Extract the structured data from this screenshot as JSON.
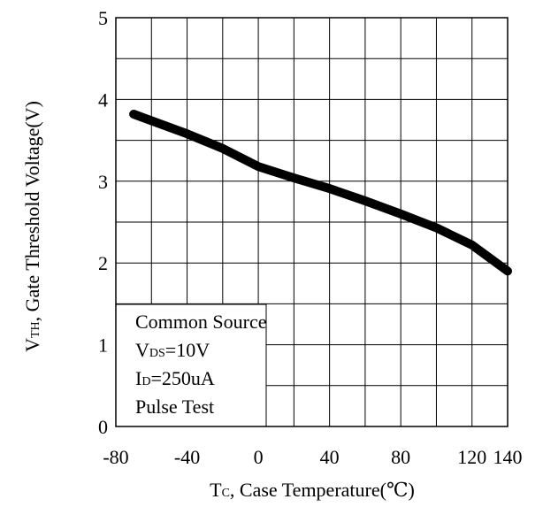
{
  "chart_data": {
    "type": "line",
    "title": "",
    "xlabel": "Tc, Case Temperature(℃)",
    "xlabel_parts": {
      "main": "T",
      "sub": "C",
      "rest": ", Case Temperature(℃)"
    },
    "ylabel": "VTH, Gate Threshold Voltage(V)",
    "ylabel_parts": {
      "main": "V",
      "sub": "TH",
      "rest": ", Gate Threshold Voltage(V)"
    },
    "xlim": [
      -80,
      140
    ],
    "ylim": [
      0,
      5
    ],
    "x_ticks": [
      -80,
      -40,
      0,
      40,
      80,
      120,
      140
    ],
    "x_tick_labels": [
      "-80",
      "-40",
      "0",
      "40",
      "80",
      "120",
      "140"
    ],
    "y_ticks": [
      0,
      1,
      2,
      3,
      4,
      5
    ],
    "y_tick_labels": [
      "0",
      "1",
      "2",
      "3",
      "4",
      "5"
    ],
    "x_grid_values": [
      -80,
      -60,
      -40,
      -20,
      0,
      20,
      40,
      60,
      80,
      100,
      120,
      140
    ],
    "y_grid_values": [
      0,
      0.5,
      1,
      1.5,
      2,
      2.5,
      3,
      3.5,
      4,
      4.5,
      5
    ],
    "grid": true,
    "series": [
      {
        "x": [
          -70,
          -40,
          -20,
          0,
          20,
          40,
          60,
          80,
          100,
          120,
          140
        ],
        "y": [
          3.82,
          3.58,
          3.4,
          3.18,
          3.04,
          2.91,
          2.76,
          2.6,
          2.43,
          2.22,
          1.9
        ]
      }
    ],
    "legend": {
      "position": "bottom-left",
      "lines": [
        {
          "main": "Common Source",
          "sub": "",
          "rest": ""
        },
        {
          "main": "V",
          "sub": "DS",
          "rest": "=10V"
        },
        {
          "main": "I",
          "sub": "D",
          "rest": "=250uA"
        },
        {
          "main": "Pulse Test",
          "sub": "",
          "rest": ""
        }
      ]
    }
  }
}
